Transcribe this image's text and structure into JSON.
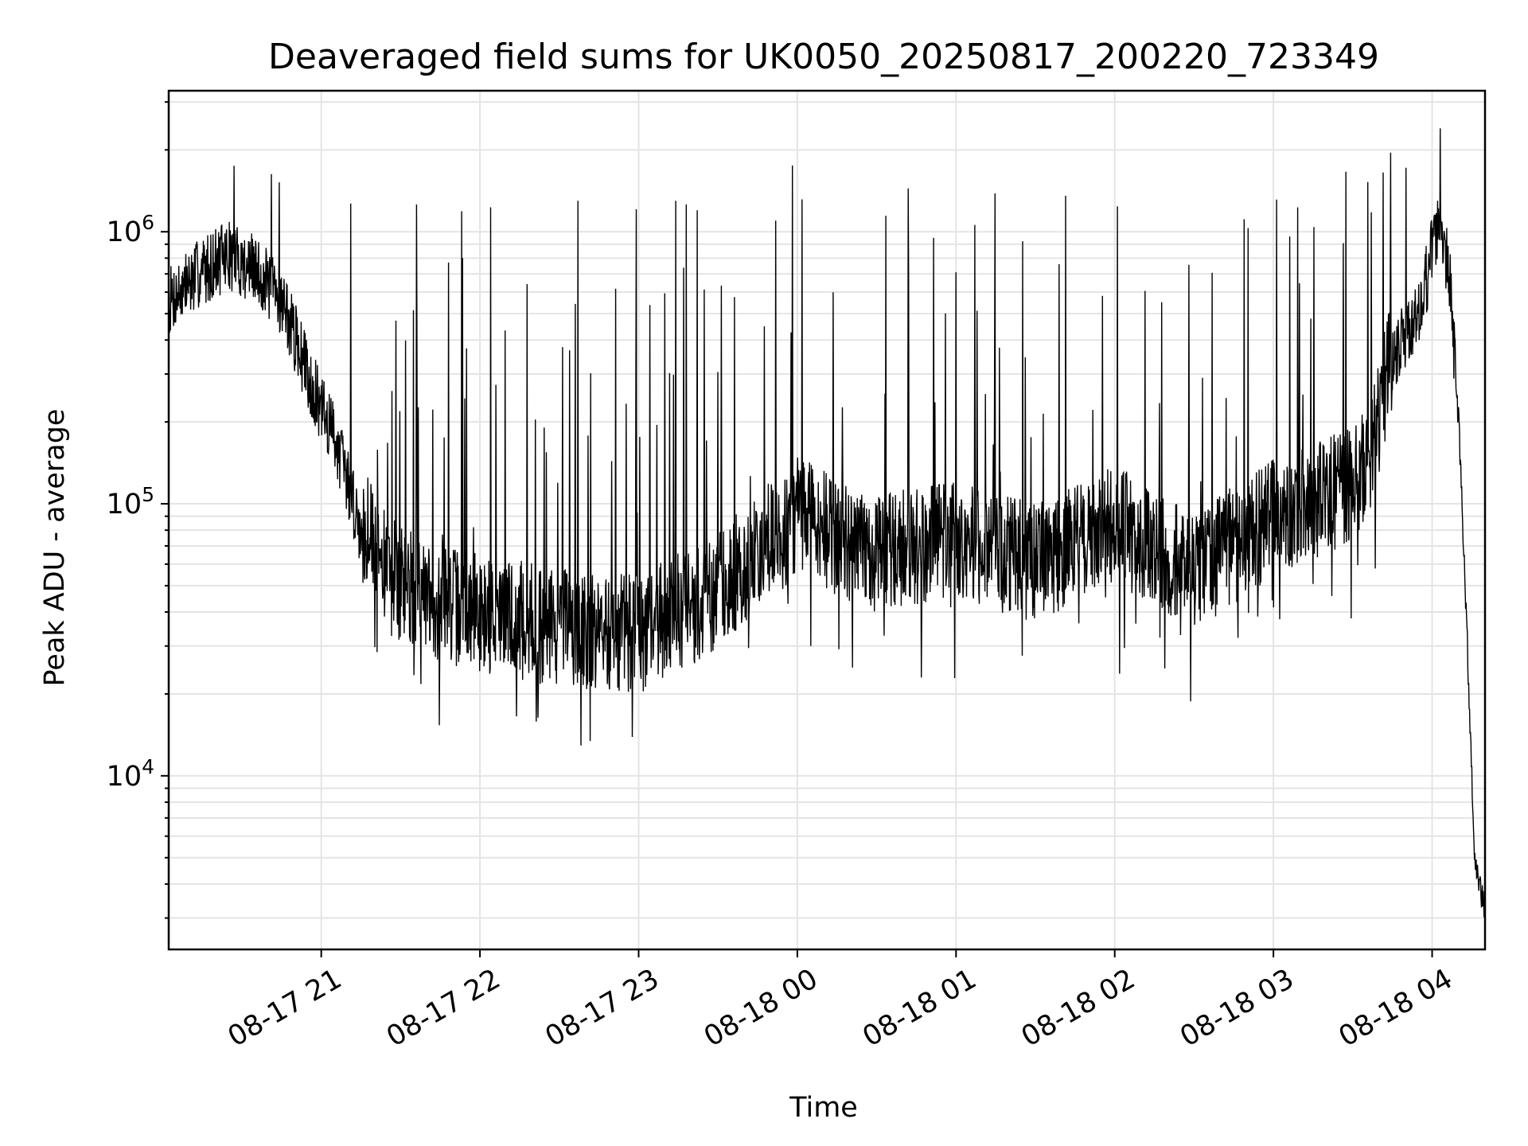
{
  "chart_data": {
    "type": "line",
    "title": "Deaveraged field sums for UK0050_20250817_200220_723349",
    "xlabel": "Time",
    "ylabel": "Peak ADU - average",
    "yscale": "log",
    "xlim": [
      "2025-08-17 20:02:20",
      "2025-08-18 04:20:00"
    ],
    "ylim": [
      2300,
      3300000
    ],
    "grid": true,
    "color": "#000000",
    "x_ticks": [
      {
        "t": "2025-08-17 21:00",
        "label": "08-17 21"
      },
      {
        "t": "2025-08-17 22:00",
        "label": "08-17 22"
      },
      {
        "t": "2025-08-17 23:00",
        "label": "08-17 23"
      },
      {
        "t": "2025-08-18 00:00",
        "label": "08-18 00"
      },
      {
        "t": "2025-08-18 01:00",
        "label": "08-18 01"
      },
      {
        "t": "2025-08-18 02:00",
        "label": "08-18 02"
      },
      {
        "t": "2025-08-18 03:00",
        "label": "08-18 03"
      },
      {
        "t": "2025-08-18 04:00",
        "label": "08-18 04"
      }
    ],
    "y_ticks": [
      {
        "value": 10000,
        "base": "10",
        "exp": "4"
      },
      {
        "value": 100000,
        "base": "10",
        "exp": "5"
      },
      {
        "value": 1000000,
        "base": "10",
        "exp": "6"
      }
    ],
    "series": [
      {
        "name": "",
        "baseline": {
          "x": [
            "2025-08-17 20:02",
            "2025-08-17 20:15",
            "2025-08-17 20:25",
            "2025-08-17 20:35",
            "2025-08-17 20:45",
            "2025-08-17 20:55",
            "2025-08-17 21:00",
            "2025-08-17 21:05",
            "2025-08-17 21:10",
            "2025-08-17 21:15",
            "2025-08-17 21:25",
            "2025-08-17 21:40",
            "2025-08-17 22:00",
            "2025-08-17 22:30",
            "2025-08-17 23:00",
            "2025-08-17 23:30",
            "2025-08-18 00:00",
            "2025-08-18 00:30",
            "2025-08-18 01:00",
            "2025-08-18 01:30",
            "2025-08-18 02:00",
            "2025-08-18 02:30",
            "2025-08-18 03:00",
            "2025-08-18 03:20",
            "2025-08-18 03:35",
            "2025-08-18 03:45",
            "2025-08-18 03:55",
            "2025-08-18 04:03",
            "2025-08-18 04:07",
            "2025-08-18 04:10",
            "2025-08-18 04:12",
            "2025-08-18 04:14",
            "2025-08-18 04:16",
            "2025-08-18 04:18",
            "2025-08-18 04:20"
          ],
          "y": [
            550000,
            720000,
            820000,
            720000,
            560000,
            300000,
            220000,
            180000,
            120000,
            80000,
            55000,
            44000,
            40000,
            35000,
            33000,
            48000,
            90000,
            65000,
            75000,
            60000,
            85000,
            55000,
            90000,
            105000,
            135000,
            350000,
            480000,
            1200000,
            600000,
            200000,
            70000,
            20000,
            5000,
            4000,
            3200
          ]
        },
        "spikes": [
          {
            "x": "2025-08-17 20:27",
            "y": 1750000
          },
          {
            "x": "2025-08-17 20:41",
            "y": 1630000
          },
          {
            "x": "2025-08-17 20:44",
            "y": 1520000
          },
          {
            "x": "2025-08-17 21:11",
            "y": 1270000
          },
          {
            "x": "2025-08-17 21:36",
            "y": 1260000
          },
          {
            "x": "2025-08-17 21:53",
            "y": 1190000
          },
          {
            "x": "2025-08-17 22:04",
            "y": 1230000
          },
          {
            "x": "2025-08-17 22:37",
            "y": 1300000
          },
          {
            "x": "2025-08-17 22:59",
            "y": 1210000
          },
          {
            "x": "2025-08-17 23:14",
            "y": 1300000
          },
          {
            "x": "2025-08-17 23:18",
            "y": 1260000
          },
          {
            "x": "2025-08-17 23:22",
            "y": 1200000
          },
          {
            "x": "2025-08-18 01:07",
            "y": 1060000
          },
          {
            "x": "2025-08-18 02:01",
            "y": 1240000
          },
          {
            "x": "2025-08-18 03:09",
            "y": 1230000
          },
          {
            "x": "2025-08-18 03:37",
            "y": 1180000
          },
          {
            "x": "2025-08-18 03:50",
            "y": 1720000
          },
          {
            "x": "2025-08-18 04:03",
            "y": 2400000
          }
        ]
      }
    ]
  }
}
